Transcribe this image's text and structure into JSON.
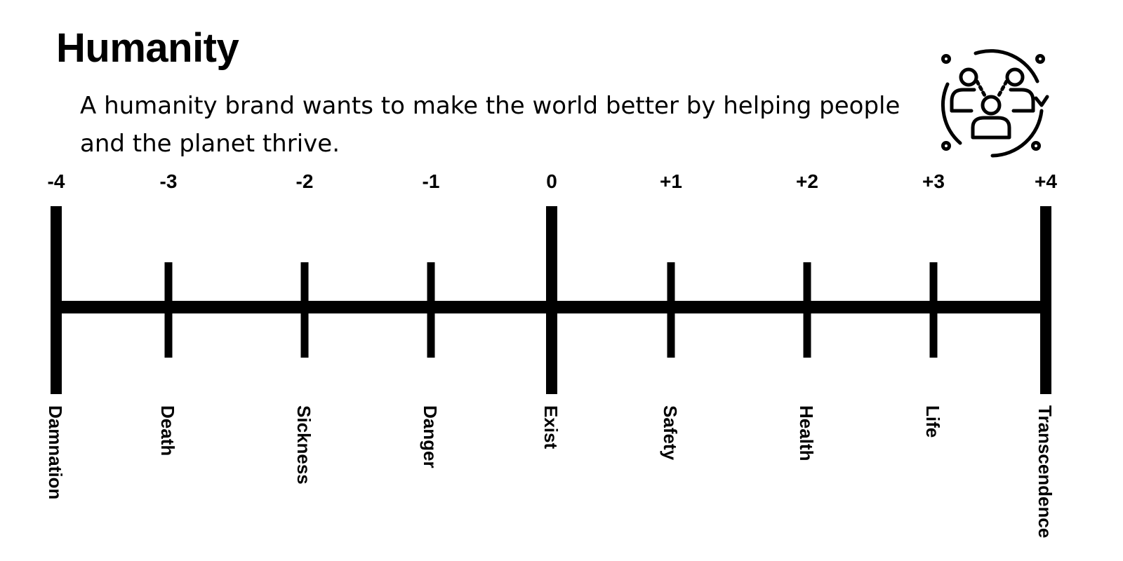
{
  "header": {
    "title": "Humanity",
    "description": "A humanity brand wants to make the world better by helping people and the planet thrive.",
    "icon": "people-cycle-icon"
  },
  "scale": {
    "points": [
      {
        "value": "-4",
        "label": "Damnation",
        "major": true
      },
      {
        "value": "-3",
        "label": "Death",
        "major": false
      },
      {
        "value": "-2",
        "label": "Sickness",
        "major": false
      },
      {
        "value": "-1",
        "label": "Danger",
        "major": false
      },
      {
        "value": "0",
        "label": "Exist",
        "major": true
      },
      {
        "value": "+1",
        "label": "Safety",
        "major": false
      },
      {
        "value": "+2",
        "label": "Health",
        "major": false
      },
      {
        "value": "+3",
        "label": "Life",
        "major": false
      },
      {
        "value": "+4",
        "label": "Transcendence",
        "major": true
      }
    ]
  }
}
